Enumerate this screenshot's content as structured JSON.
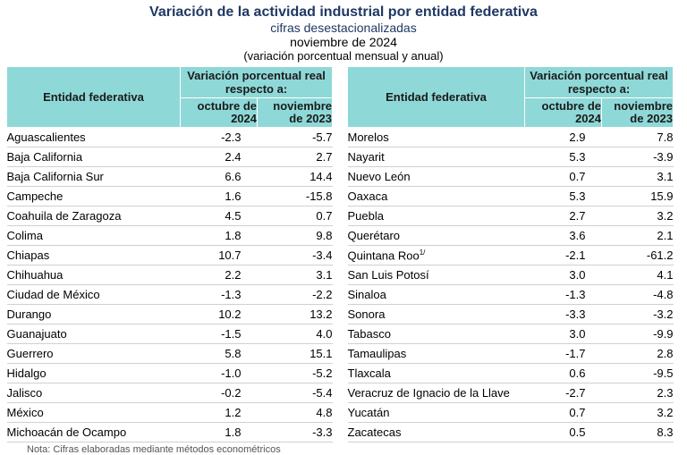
{
  "header": {
    "title": "Variación de la actividad industrial por entidad federativa",
    "subtitle": "cifras desestacionalizadas",
    "date": "noviembre de 2024",
    "paren": "(variación porcentual mensual y anual)"
  },
  "table_headers": {
    "entidad": "Entidad federativa",
    "group": "Variación porcentual real respecto a:",
    "col1": "octubre de 2024",
    "col2": "noviembre de 2023"
  },
  "left_rows": [
    {
      "entidad": "Aguascalientes",
      "oct": "-2.3",
      "nov": "-5.7"
    },
    {
      "entidad": "Baja California",
      "oct": "2.4",
      "nov": "2.7"
    },
    {
      "entidad": "Baja California Sur",
      "oct": "6.6",
      "nov": "14.4"
    },
    {
      "entidad": "Campeche",
      "oct": "1.6",
      "nov": "-15.8"
    },
    {
      "entidad": "Coahuila de Zaragoza",
      "oct": "4.5",
      "nov": "0.7"
    },
    {
      "entidad": "Colima",
      "oct": "1.8",
      "nov": "9.8"
    },
    {
      "entidad": "Chiapas",
      "oct": "10.7",
      "nov": "-3.4"
    },
    {
      "entidad": "Chihuahua",
      "oct": "2.2",
      "nov": "3.1"
    },
    {
      "entidad": "Ciudad de México",
      "oct": "-1.3",
      "nov": "-2.2"
    },
    {
      "entidad": "Durango",
      "oct": "10.2",
      "nov": "13.2"
    },
    {
      "entidad": "Guanajuato",
      "oct": "-1.5",
      "nov": "4.0"
    },
    {
      "entidad": "Guerrero",
      "oct": "5.8",
      "nov": "15.1"
    },
    {
      "entidad": "Hidalgo",
      "oct": "-1.0",
      "nov": "-5.2"
    },
    {
      "entidad": "Jalisco",
      "oct": "-0.2",
      "nov": "-5.4"
    },
    {
      "entidad": "México",
      "oct": "1.2",
      "nov": "4.8"
    },
    {
      "entidad": "Michoacán de Ocampo",
      "oct": "1.8",
      "nov": "-3.3"
    }
  ],
  "right_rows": [
    {
      "entidad": "Morelos",
      "oct": "2.9",
      "nov": "7.8"
    },
    {
      "entidad": "Nayarit",
      "oct": "5.3",
      "nov": "-3.9"
    },
    {
      "entidad": "Nuevo León",
      "oct": "0.7",
      "nov": "3.1"
    },
    {
      "entidad": "Oaxaca",
      "oct": "5.3",
      "nov": "15.9"
    },
    {
      "entidad": "Puebla",
      "oct": "2.7",
      "nov": "3.2"
    },
    {
      "entidad": "Querétaro",
      "oct": "3.6",
      "nov": "2.1"
    },
    {
      "entidad": "Quintana Roo",
      "sup": "1/",
      "oct": "-2.1",
      "nov": "-61.2"
    },
    {
      "entidad": "San Luis Potosí",
      "oct": "3.0",
      "nov": "4.1"
    },
    {
      "entidad": "Sinaloa",
      "oct": "-1.3",
      "nov": "-4.8"
    },
    {
      "entidad": "Sonora",
      "oct": "-3.3",
      "nov": "-3.2"
    },
    {
      "entidad": "Tabasco",
      "oct": "3.0",
      "nov": "-9.9"
    },
    {
      "entidad": "Tamaulipas",
      "oct": "-1.7",
      "nov": "2.8"
    },
    {
      "entidad": "Tlaxcala",
      "oct": "0.6",
      "nov": "-9.5"
    },
    {
      "entidad": "Veracruz de Ignacio de la Llave",
      "oct": "-2.7",
      "nov": "2.3"
    },
    {
      "entidad": "Yucatán",
      "oct": "0.7",
      "nov": "3.2"
    },
    {
      "entidad": "Zacatecas",
      "oct": "0.5",
      "nov": "8.3"
    }
  ],
  "note": "Nota: Cifras elaboradas mediante métodos econométricos"
}
